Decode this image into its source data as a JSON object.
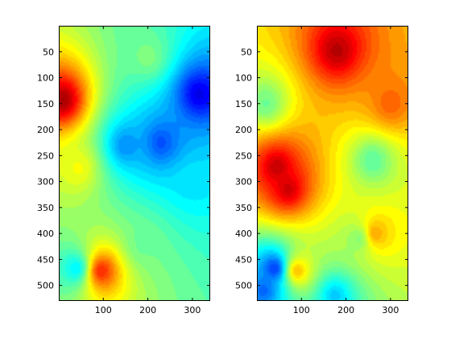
{
  "chart_data": [
    {
      "type": "heatmap",
      "xlim": [
        0,
        340
      ],
      "ylim": [
        530,
        0
      ],
      "y_reversed": true,
      "xticks": [
        100,
        200,
        300
      ],
      "yticks": [
        50,
        100,
        150,
        200,
        250,
        300,
        350,
        400,
        450,
        500
      ],
      "colormap": "jet",
      "value_range": [
        0,
        1
      ],
      "base_value": 0.45,
      "features": [
        {
          "x": 8,
          "y": 143,
          "value": 0.97
        },
        {
          "x": 315,
          "y": 132,
          "value": 0.1
        },
        {
          "x": 230,
          "y": 225,
          "value": 0.2
        },
        {
          "x": 150,
          "y": 230,
          "value": 0.26
        },
        {
          "x": 95,
          "y": 472,
          "value": 0.85
        },
        {
          "x": 45,
          "y": 275,
          "value": 0.62
        },
        {
          "x": 40,
          "y": 467,
          "value": 0.36
        },
        {
          "x": 200,
          "y": 60,
          "value": 0.5
        },
        {
          "x": 190,
          "y": 420,
          "value": 0.48
        },
        {
          "x": 300,
          "y": 300,
          "value": 0.35
        }
      ]
    },
    {
      "type": "heatmap",
      "xlim": [
        0,
        340
      ],
      "ylim": [
        530,
        0
      ],
      "y_reversed": true,
      "xticks": [
        100,
        200,
        300
      ],
      "yticks": [
        50,
        100,
        150,
        200,
        250,
        300,
        350,
        400,
        450,
        500
      ],
      "colormap": "jet",
      "value_range": [
        0,
        1
      ],
      "base_value": 0.6,
      "features": [
        {
          "x": 180,
          "y": 48,
          "value": 0.95
        },
        {
          "x": 45,
          "y": 272,
          "value": 0.94
        },
        {
          "x": 70,
          "y": 315,
          "value": 0.93
        },
        {
          "x": 40,
          "y": 467,
          "value": 0.17
        },
        {
          "x": 15,
          "y": 510,
          "value": 0.22
        },
        {
          "x": 175,
          "y": 520,
          "value": 0.32
        },
        {
          "x": 20,
          "y": 150,
          "value": 0.48
        },
        {
          "x": 260,
          "y": 260,
          "value": 0.46
        },
        {
          "x": 230,
          "y": 410,
          "value": 0.5
        },
        {
          "x": 265,
          "y": 400,
          "value": 0.72
        },
        {
          "x": 90,
          "y": 472,
          "value": 0.7
        },
        {
          "x": 300,
          "y": 150,
          "value": 0.78
        }
      ]
    }
  ]
}
